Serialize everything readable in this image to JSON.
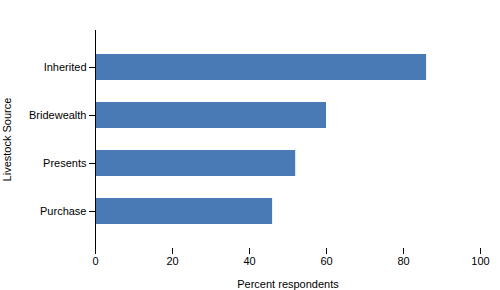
{
  "chart_data": {
    "type": "bar",
    "orientation": "horizontal",
    "categories": [
      "Inherited",
      "Bridewealth",
      "Presents",
      "Purchase"
    ],
    "values": [
      86,
      60,
      52,
      46
    ],
    "color": "#4a7ab5",
    "xlabel": "Percent respondents",
    "ylabel": "Livestock Source",
    "xlim": [
      0,
      100
    ],
    "xticks": [
      0,
      20,
      40,
      60,
      80,
      100
    ],
    "grid": false
  }
}
